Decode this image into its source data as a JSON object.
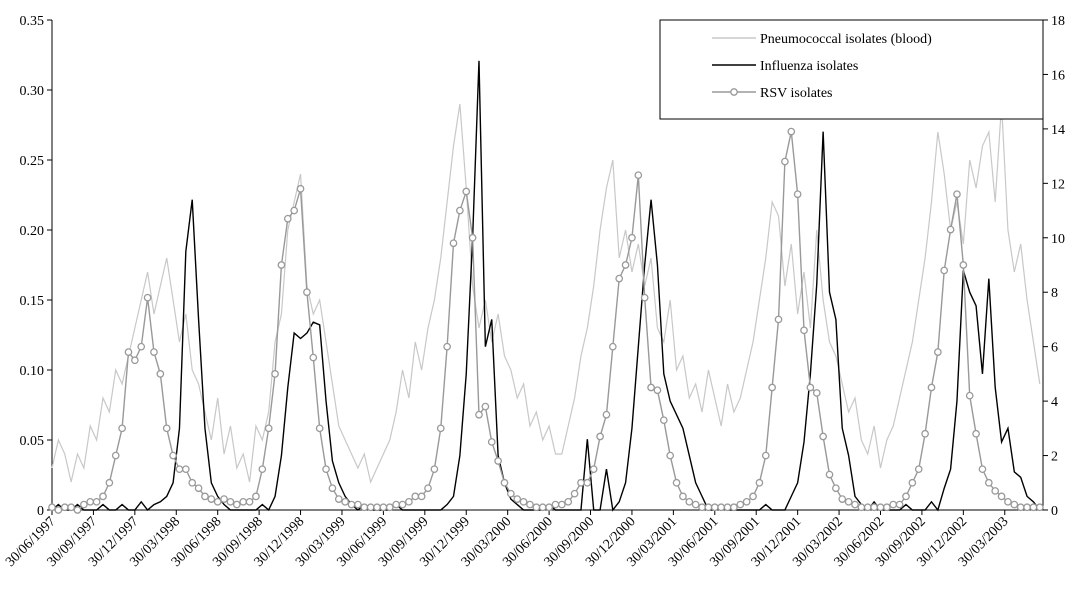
{
  "chart_data": {
    "type": "line",
    "x": [
      0,
      2,
      4,
      6,
      8,
      10,
      12,
      14,
      16,
      18,
      20,
      22,
      24,
      26,
      28,
      30,
      32,
      34,
      36,
      38,
      40,
      42,
      44,
      46,
      48,
      50,
      52,
      54,
      56,
      58,
      60,
      62,
      64,
      66,
      68,
      70,
      72,
      74,
      76,
      78,
      80,
      82,
      84,
      86,
      88,
      90,
      92,
      94,
      96,
      98,
      100,
      102,
      104,
      106,
      108,
      110,
      112,
      114,
      116,
      118,
      120,
      122,
      124,
      126,
      128,
      130,
      132,
      134,
      136,
      138,
      140,
      142,
      144,
      146,
      148,
      150,
      152,
      154,
      156,
      158,
      160,
      162,
      164,
      166,
      168,
      170,
      172,
      174,
      176,
      178,
      180,
      182,
      184,
      186,
      188,
      190,
      192,
      194,
      196,
      198,
      200,
      202,
      204,
      206,
      208,
      210,
      212,
      214,
      216,
      218,
      220,
      222,
      224,
      226,
      228,
      230,
      232,
      234,
      236,
      238,
      240,
      242,
      244,
      246,
      248,
      250,
      252,
      254,
      256,
      258,
      260,
      262,
      264,
      266,
      268,
      270,
      272,
      274,
      276,
      278,
      280,
      282,
      284,
      286,
      288,
      290,
      292,
      294,
      296,
      298,
      300,
      302,
      304,
      306,
      308,
      310
    ],
    "xlim": [
      0,
      311
    ],
    "xticks": [
      {
        "value": 0,
        "label": "30/06/1997"
      },
      {
        "value": 13,
        "label": "30/09/1997"
      },
      {
        "value": 26,
        "label": "30/12/1997"
      },
      {
        "value": 39,
        "label": "30/03/1998"
      },
      {
        "value": 52,
        "label": "30/06/1998"
      },
      {
        "value": 65,
        "label": "30/09/1998"
      },
      {
        "value": 78,
        "label": "30/12/1998"
      },
      {
        "value": 91,
        "label": "30/03/1999"
      },
      {
        "value": 104,
        "label": "30/06/1999"
      },
      {
        "value": 117,
        "label": "30/09/1999"
      },
      {
        "value": 130,
        "label": "30/12/1999"
      },
      {
        "value": 143,
        "label": "30/03/2000"
      },
      {
        "value": 156,
        "label": "30/06/2000"
      },
      {
        "value": 169,
        "label": "30/09/2000"
      },
      {
        "value": 182,
        "label": "30/12/2000"
      },
      {
        "value": 195,
        "label": "30/03/2001"
      },
      {
        "value": 208,
        "label": "30/06/2001"
      },
      {
        "value": 221,
        "label": "30/09/2001"
      },
      {
        "value": 234,
        "label": "30/12/2001"
      },
      {
        "value": 247,
        "label": "30/03/2002"
      },
      {
        "value": 260,
        "label": "30/06/2002"
      },
      {
        "value": 273,
        "label": "30/09/2002"
      },
      {
        "value": 286,
        "label": "30/12/2002"
      },
      {
        "value": 299,
        "label": "30/03/2003"
      }
    ],
    "ylim": [
      0,
      0.35
    ],
    "yticks": [
      0,
      0.05,
      {
        "value": 0.1,
        "label": "0.10"
      },
      0.15,
      {
        "value": 0.2,
        "label": "0.20"
      },
      0.25,
      {
        "value": 0.3,
        "label": "0.30"
      },
      0.35
    ],
    "y2lim": [
      0,
      18
    ],
    "y2ticks": [
      0,
      2,
      4,
      6,
      8,
      10,
      12,
      14,
      16,
      18
    ],
    "legend": "top-right",
    "series": [
      {
        "name": "Pneumococcal isolates (blood)",
        "color": "#c8c8c8",
        "axis": "y",
        "values": [
          0.03,
          0.05,
          0.04,
          0.02,
          0.04,
          0.03,
          0.06,
          0.05,
          0.08,
          0.07,
          0.1,
          0.09,
          0.11,
          0.13,
          0.15,
          0.17,
          0.14,
          0.16,
          0.18,
          0.15,
          0.12,
          0.14,
          0.1,
          0.09,
          0.07,
          0.05,
          0.08,
          0.04,
          0.06,
          0.03,
          0.04,
          0.02,
          0.06,
          0.05,
          0.07,
          0.12,
          0.14,
          0.2,
          0.22,
          0.24,
          0.16,
          0.14,
          0.15,
          0.12,
          0.09,
          0.06,
          0.05,
          0.04,
          0.03,
          0.04,
          0.02,
          0.03,
          0.04,
          0.05,
          0.07,
          0.1,
          0.08,
          0.12,
          0.1,
          0.13,
          0.15,
          0.18,
          0.22,
          0.26,
          0.29,
          0.23,
          0.16,
          0.13,
          0.15,
          0.12,
          0.14,
          0.11,
          0.1,
          0.08,
          0.09,
          0.06,
          0.07,
          0.05,
          0.06,
          0.04,
          0.04,
          0.06,
          0.08,
          0.11,
          0.13,
          0.16,
          0.2,
          0.23,
          0.25,
          0.18,
          0.2,
          0.17,
          0.19,
          0.16,
          0.18,
          0.13,
          0.12,
          0.15,
          0.1,
          0.11,
          0.08,
          0.09,
          0.07,
          0.1,
          0.08,
          0.06,
          0.09,
          0.07,
          0.08,
          0.1,
          0.12,
          0.15,
          0.18,
          0.22,
          0.21,
          0.16,
          0.19,
          0.14,
          0.17,
          0.13,
          0.2,
          0.15,
          0.12,
          0.11,
          0.09,
          0.07,
          0.08,
          0.05,
          0.04,
          0.06,
          0.03,
          0.05,
          0.06,
          0.08,
          0.1,
          0.12,
          0.15,
          0.18,
          0.22,
          0.27,
          0.24,
          0.2,
          0.22,
          0.19,
          0.25,
          0.23,
          0.26,
          0.27,
          0.22,
          0.29,
          0.2,
          0.17,
          0.19,
          0.15,
          0.12,
          0.09
        ]
      },
      {
        "name": "Influenza isolates",
        "color": "#000000",
        "axis": "y2",
        "values": [
          0,
          0.2,
          0,
          0,
          0.2,
          0,
          0,
          0,
          0.2,
          0,
          0,
          0.2,
          0,
          0,
          0.3,
          0,
          0.2,
          0.3,
          0.5,
          1,
          3,
          9.5,
          11.4,
          7,
          3,
          1,
          0.5,
          0.2,
          0,
          0,
          0,
          0,
          0,
          0.2,
          0,
          0.5,
          2,
          4.5,
          6.5,
          6.3,
          6.5,
          6.9,
          6.8,
          4,
          1.8,
          1,
          0.5,
          0.2,
          0,
          0.2,
          0,
          0,
          0,
          0,
          0.2,
          0,
          0,
          0,
          0,
          0,
          0,
          0,
          0.2,
          0.5,
          2,
          5,
          10,
          16.5,
          6,
          7,
          2,
          1,
          0.4,
          0.2,
          0,
          0,
          0,
          0,
          0.2,
          0,
          0,
          0,
          0,
          0,
          2.6,
          0,
          0,
          1.5,
          0,
          0.3,
          1,
          3,
          6,
          9,
          11.4,
          9,
          5,
          4,
          3.5,
          3,
          2,
          1,
          0.5,
          0,
          0,
          0.2,
          0,
          0,
          0,
          0,
          0,
          0,
          0.2,
          0,
          0,
          0,
          0.5,
          1,
          2.5,
          5,
          8.3,
          13.9,
          8,
          7,
          3,
          2,
          0.5,
          0.2,
          0,
          0.3,
          0,
          0,
          0,
          0,
          0.2,
          0,
          0,
          0,
          0.3,
          0,
          0.8,
          1.5,
          4,
          8.8,
          8,
          7.5,
          5,
          8.5,
          4.5,
          2.5,
          3,
          1.4,
          1.2,
          0.5,
          0.3,
          0
        ]
      },
      {
        "name": "RSV isolates",
        "color": "#999999",
        "axis": "y2",
        "marker": "circle",
        "values": [
          0.1,
          0,
          0.1,
          0.1,
          0,
          0.2,
          0.3,
          0.3,
          0.5,
          1,
          2,
          3,
          5.8,
          5.5,
          6,
          7.8,
          5.8,
          5,
          3,
          2,
          1.5,
          1.5,
          1,
          0.8,
          0.5,
          0.4,
          0.3,
          0.4,
          0.3,
          0.2,
          0.3,
          0.3,
          0.5,
          1.5,
          3,
          5,
          9,
          10.7,
          11,
          11.8,
          8,
          5.6,
          3,
          1.5,
          0.8,
          0.4,
          0.3,
          0.2,
          0.2,
          0.1,
          0.1,
          0.1,
          0.1,
          0.1,
          0.2,
          0.2,
          0.3,
          0.5,
          0.5,
          0.8,
          1.5,
          3,
          6,
          9.8,
          11,
          11.7,
          10,
          3.5,
          3.8,
          2.5,
          1.8,
          1,
          0.6,
          0.4,
          0.3,
          0.2,
          0.1,
          0.1,
          0.1,
          0.2,
          0.2,
          0.3,
          0.6,
          1,
          1,
          1.5,
          2.7,
          3.5,
          6,
          8.5,
          9,
          10,
          12.3,
          7.8,
          4.5,
          4.4,
          3.3,
          2,
          1,
          0.5,
          0.3,
          0.2,
          0.1,
          0.1,
          0.1,
          0.1,
          0.1,
          0.1,
          0.2,
          0.3,
          0.5,
          1,
          2,
          4.5,
          7,
          12.8,
          13.9,
          11.6,
          6.6,
          4.5,
          4.3,
          2.7,
          1.3,
          0.8,
          0.4,
          0.3,
          0.2,
          0.1,
          0.1,
          0.1,
          0.1,
          0.1,
          0.2,
          0.2,
          0.5,
          1,
          1.5,
          2.8,
          4.5,
          5.8,
          8.8,
          10.3,
          11.6,
          9,
          4.2,
          2.8,
          1.5,
          1,
          0.7,
          0.5,
          0.3,
          0.2,
          0.1,
          0.1,
          0.1,
          0.1
        ]
      }
    ]
  }
}
